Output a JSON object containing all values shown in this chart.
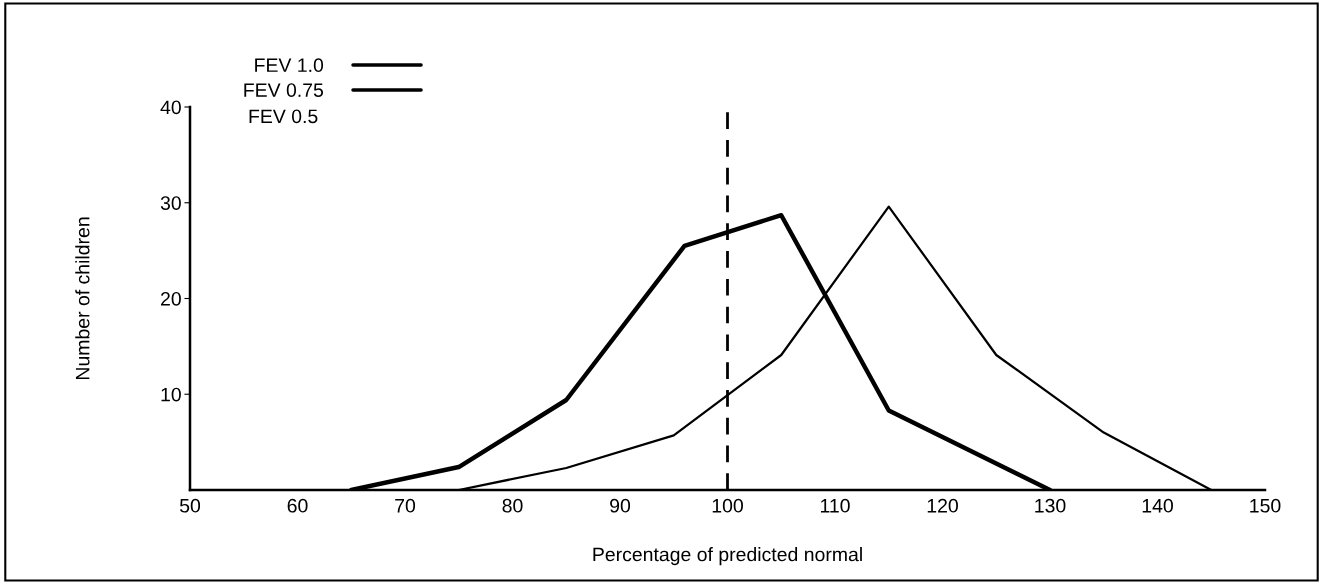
{
  "chart_data": {
    "type": "line",
    "xlabel": "Percentage of predicted normal",
    "ylabel": "Number of children",
    "series": [
      {
        "name": "FEV 1.0",
        "color": "#000000",
        "x": [
          65,
          75,
          85,
          96,
          105,
          115,
          130
        ],
        "values": [
          0,
          2.4,
          9.4,
          25.5,
          28.7,
          8.3,
          0
        ]
      },
      {
        "name": "FEV 0.75",
        "color": "#000000",
        "x": [
          75,
          85,
          95,
          105,
          115,
          125,
          135,
          145
        ],
        "values": [
          0,
          2.3,
          5.7,
          14.1,
          29.6,
          14.1,
          6.0,
          0
        ]
      }
    ],
    "annotations": [
      "FEV 0.5"
    ],
    "xlim": [
      50,
      150
    ],
    "xticks": [
      50,
      60,
      70,
      80,
      90,
      100,
      110,
      120,
      130,
      140,
      150
    ],
    "ylim": [
      0,
      40
    ],
    "yticks": [
      10,
      20,
      30,
      40
    ],
    "ref_lines": [
      {
        "axis": "x",
        "value": 100,
        "line_style": "dashed",
        "color": "#000000"
      }
    ],
    "legend": "top left",
    "grid": false,
    "marker": "none",
    "line_style": "solid"
  }
}
